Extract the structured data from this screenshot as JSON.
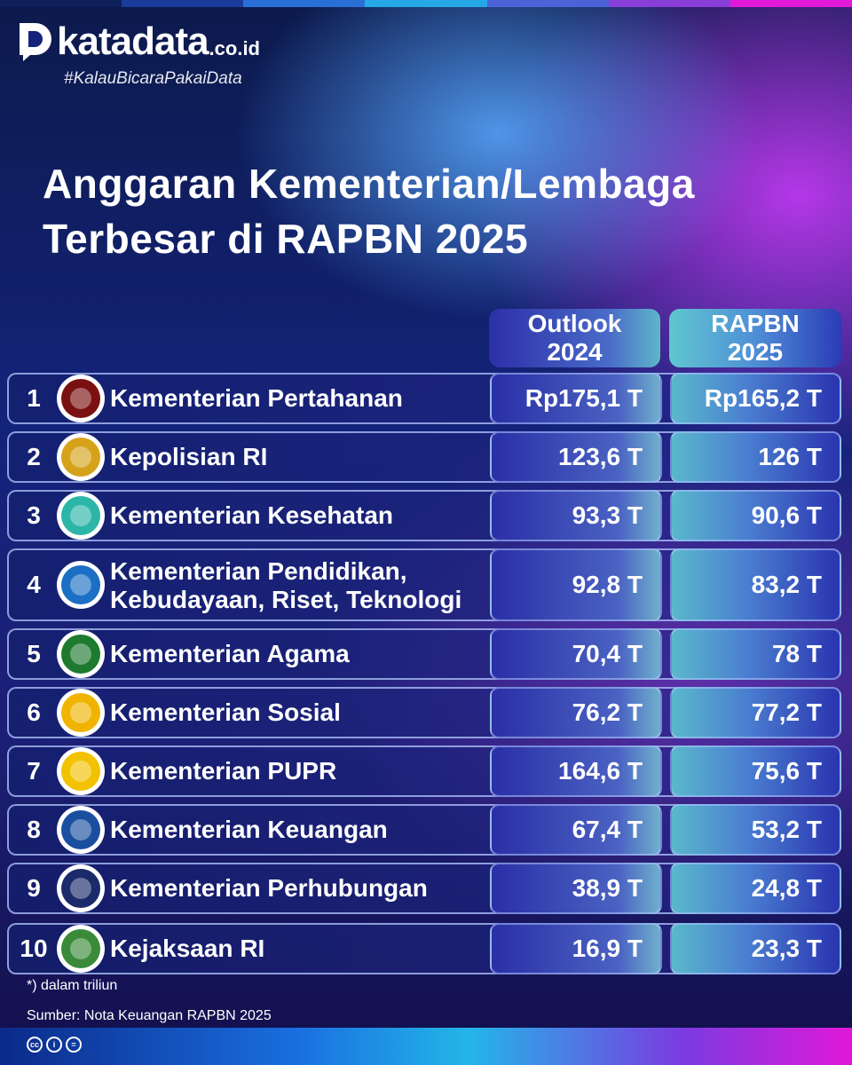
{
  "brand": {
    "name": "katadata",
    "domain": ".co.id",
    "hashtag": "#KalauBicaraPakaiData"
  },
  "title_line1": "Anggaran Kementerian/Lembaga",
  "title_line2": "Terbesar di RAPBN 2025",
  "columns": {
    "outlook_line1": "Outlook",
    "outlook_line2": "2024",
    "rapbn_line1": "RAPBN",
    "rapbn_line2": "2025"
  },
  "rows": [
    {
      "rank": "1",
      "name": "Kementerian Pertahanan",
      "name2": "",
      "icon": "kemhan-emblem-icon",
      "outlook": "Rp175,1 T",
      "rapbn": "Rp165,2 T"
    },
    {
      "rank": "2",
      "name": "Kepolisian RI",
      "name2": "",
      "icon": "polri-emblem-icon",
      "outlook": "123,6 T",
      "rapbn": "126 T"
    },
    {
      "rank": "3",
      "name": "Kementerian Kesehatan",
      "name2": "",
      "icon": "kemenkes-logo-icon",
      "outlook": "93,3 T",
      "rapbn": "90,6 T"
    },
    {
      "rank": "4",
      "name": "Kementerian Pendidikan,",
      "name2": "Kebudayaan, Riset, Teknologi",
      "icon": "kemendikbud-logo-icon",
      "outlook": "92,8 T",
      "rapbn": "83,2 T"
    },
    {
      "rank": "5",
      "name": "Kementerian Agama",
      "name2": "",
      "icon": "kemenag-logo-icon",
      "outlook": "70,4 T",
      "rapbn": "78 T"
    },
    {
      "rank": "6",
      "name": "Kementerian Sosial",
      "name2": "",
      "icon": "kemensos-logo-icon",
      "outlook": "76,2 T",
      "rapbn": "77,2 T"
    },
    {
      "rank": "7",
      "name": "Kementerian PUPR",
      "name2": "",
      "icon": "pupr-logo-icon",
      "outlook": "164,6 T",
      "rapbn": "75,6 T"
    },
    {
      "rank": "8",
      "name": "Kementerian Keuangan",
      "name2": "",
      "icon": "kemenkeu-logo-icon",
      "outlook": "67,4 T",
      "rapbn": "53,2 T"
    },
    {
      "rank": "9",
      "name": "Kementerian Perhubungan",
      "name2": "",
      "icon": "kemenhub-logo-icon",
      "outlook": "38,9 T",
      "rapbn": "24,8 T"
    },
    {
      "rank": "10",
      "name": "Kejaksaan RI",
      "name2": "",
      "icon": "kejaksaan-logo-icon",
      "outlook": "16,9 T",
      "rapbn": "23,3 T"
    }
  ],
  "footnote": "*) dalam triliun",
  "source": "Sumber: Nota Keuangan RAPBN 2025",
  "license_icons": [
    "cc-icon",
    "attribution-icon",
    "no-derivatives-icon"
  ],
  "colors": {
    "background": "#14237a",
    "accent_blue": "#5aaaff",
    "accent_magenta": "#d23cff",
    "cell_teal": "#5ab8cc"
  }
}
